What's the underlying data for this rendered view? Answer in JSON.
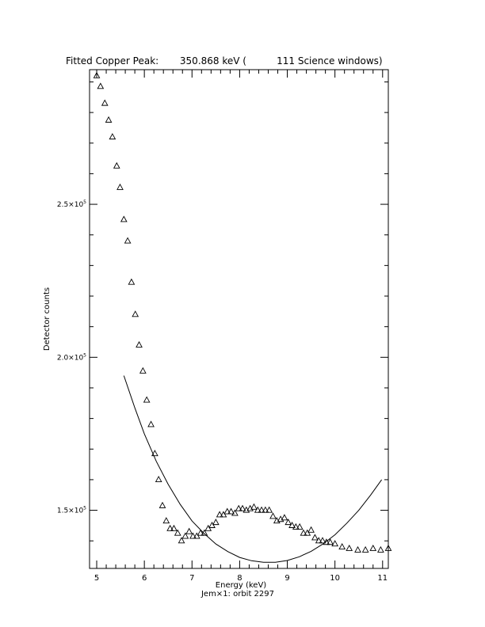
{
  "chart_data": {
    "type": "scatter",
    "title": "Fitted Copper Peak:       350.868 keV (          111 Science windows)",
    "xlabel": "Energy (keV)",
    "ylabel": "Detector counts",
    "subtitle": "Jem×1: orbit 2297",
    "xlim": [
      4.85,
      11.12
    ],
    "ylim": [
      131000,
      294000
    ],
    "x_ticks": [
      {
        "value": 5,
        "label": "5"
      },
      {
        "value": 6,
        "label": "6"
      },
      {
        "value": 7,
        "label": "7"
      },
      {
        "value": 8,
        "label": "8"
      },
      {
        "value": 9,
        "label": "9"
      },
      {
        "value": 10,
        "label": "10"
      },
      {
        "value": 11,
        "label": "11"
      }
    ],
    "y_ticks": [
      {
        "value": 150000,
        "base": "1.5×10",
        "exp": "5"
      },
      {
        "value": 200000,
        "base": "2.0×10",
        "exp": "5"
      },
      {
        "value": 250000,
        "base": "2.5×10",
        "exp": "5"
      }
    ],
    "series": [
      {
        "marker": "triangle",
        "x": [
          5.0,
          5.08,
          5.17,
          5.25,
          5.33,
          5.42,
          5.49,
          5.57,
          5.65,
          5.73,
          5.81,
          5.89,
          5.97,
          6.05,
          6.14,
          6.22,
          6.3,
          6.38,
          6.46,
          6.54,
          6.62,
          6.7,
          6.78,
          6.86,
          6.94,
          7.02,
          7.1,
          7.18,
          7.26,
          7.34,
          7.42,
          7.5,
          7.58,
          7.66,
          7.74,
          7.82,
          7.9,
          7.98,
          8.06,
          8.14,
          8.22,
          8.3,
          8.38,
          8.46,
          8.54,
          8.62,
          8.7,
          8.78,
          8.86,
          8.94,
          9.02,
          9.1,
          9.18,
          9.26,
          9.34,
          9.42,
          9.5,
          9.58,
          9.66,
          9.74,
          9.82,
          9.9,
          10.0,
          10.15,
          10.3,
          10.48,
          10.64,
          10.8,
          10.96,
          11.12
        ],
        "y": [
          292000,
          288500,
          283000,
          277500,
          272000,
          262500,
          255500,
          245000,
          238000,
          224500,
          214000,
          204000,
          195500,
          186000,
          178000,
          168500,
          160000,
          151500,
          146500,
          144000,
          144000,
          142500,
          140000,
          141500,
          143000,
          141500,
          141500,
          142500,
          142500,
          144000,
          145000,
          146000,
          148500,
          148500,
          149500,
          149500,
          149000,
          150500,
          150500,
          150000,
          150500,
          151000,
          150000,
          150000,
          150000,
          150000,
          148000,
          146500,
          147000,
          147500,
          146000,
          145000,
          144500,
          144500,
          142500,
          142500,
          143500,
          141000,
          140000,
          140000,
          139500,
          139500,
          139000,
          138000,
          137500,
          137000,
          137000,
          137500,
          137000,
          137500
        ]
      },
      {
        "marker": "line",
        "x": [
          5.57,
          5.8,
          6.0,
          6.25,
          6.5,
          6.75,
          7.0,
          7.25,
          7.5,
          7.75,
          8.0,
          8.25,
          8.5,
          8.75,
          9.0,
          9.25,
          9.5,
          9.75,
          10.0,
          10.25,
          10.5,
          10.75,
          10.98
        ],
        "y": [
          194000,
          183500,
          175000,
          166000,
          158500,
          152000,
          146500,
          142500,
          139000,
          136500,
          134600,
          133500,
          133000,
          133000,
          133600,
          134800,
          136600,
          139000,
          142000,
          145800,
          150000,
          155000,
          160000
        ]
      }
    ]
  }
}
